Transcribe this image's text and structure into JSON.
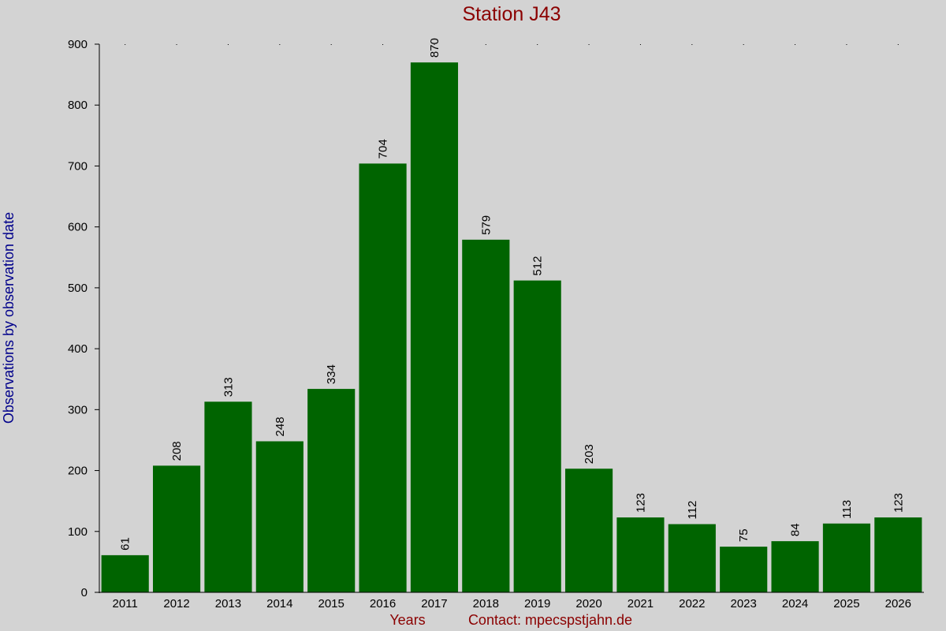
{
  "chart_data": {
    "type": "bar",
    "title": "Station J43",
    "xlabel": "Years",
    "ylabel": "Observations by observation date",
    "contact": "Contact: mpecspstjahn.de",
    "categories": [
      "2011",
      "2012",
      "2013",
      "2014",
      "2015",
      "2016",
      "2017",
      "2018",
      "2019",
      "2020",
      "2021",
      "2022",
      "2023",
      "2024",
      "2025",
      "2026"
    ],
    "values": [
      61,
      208,
      313,
      248,
      334,
      704,
      870,
      579,
      512,
      203,
      123,
      112,
      75,
      84,
      113,
      123
    ],
    "ylim": [
      0,
      900
    ],
    "yticks": [
      0,
      100,
      200,
      300,
      400,
      500,
      600,
      700,
      800,
      900
    ],
    "grid": false,
    "legend": "none",
    "colors": {
      "background": "#d3d3d3",
      "bar": "#006400",
      "title": "#8b0000",
      "ylabel": "#00008b",
      "footer": "#8b0000",
      "axis": "#000000"
    }
  }
}
